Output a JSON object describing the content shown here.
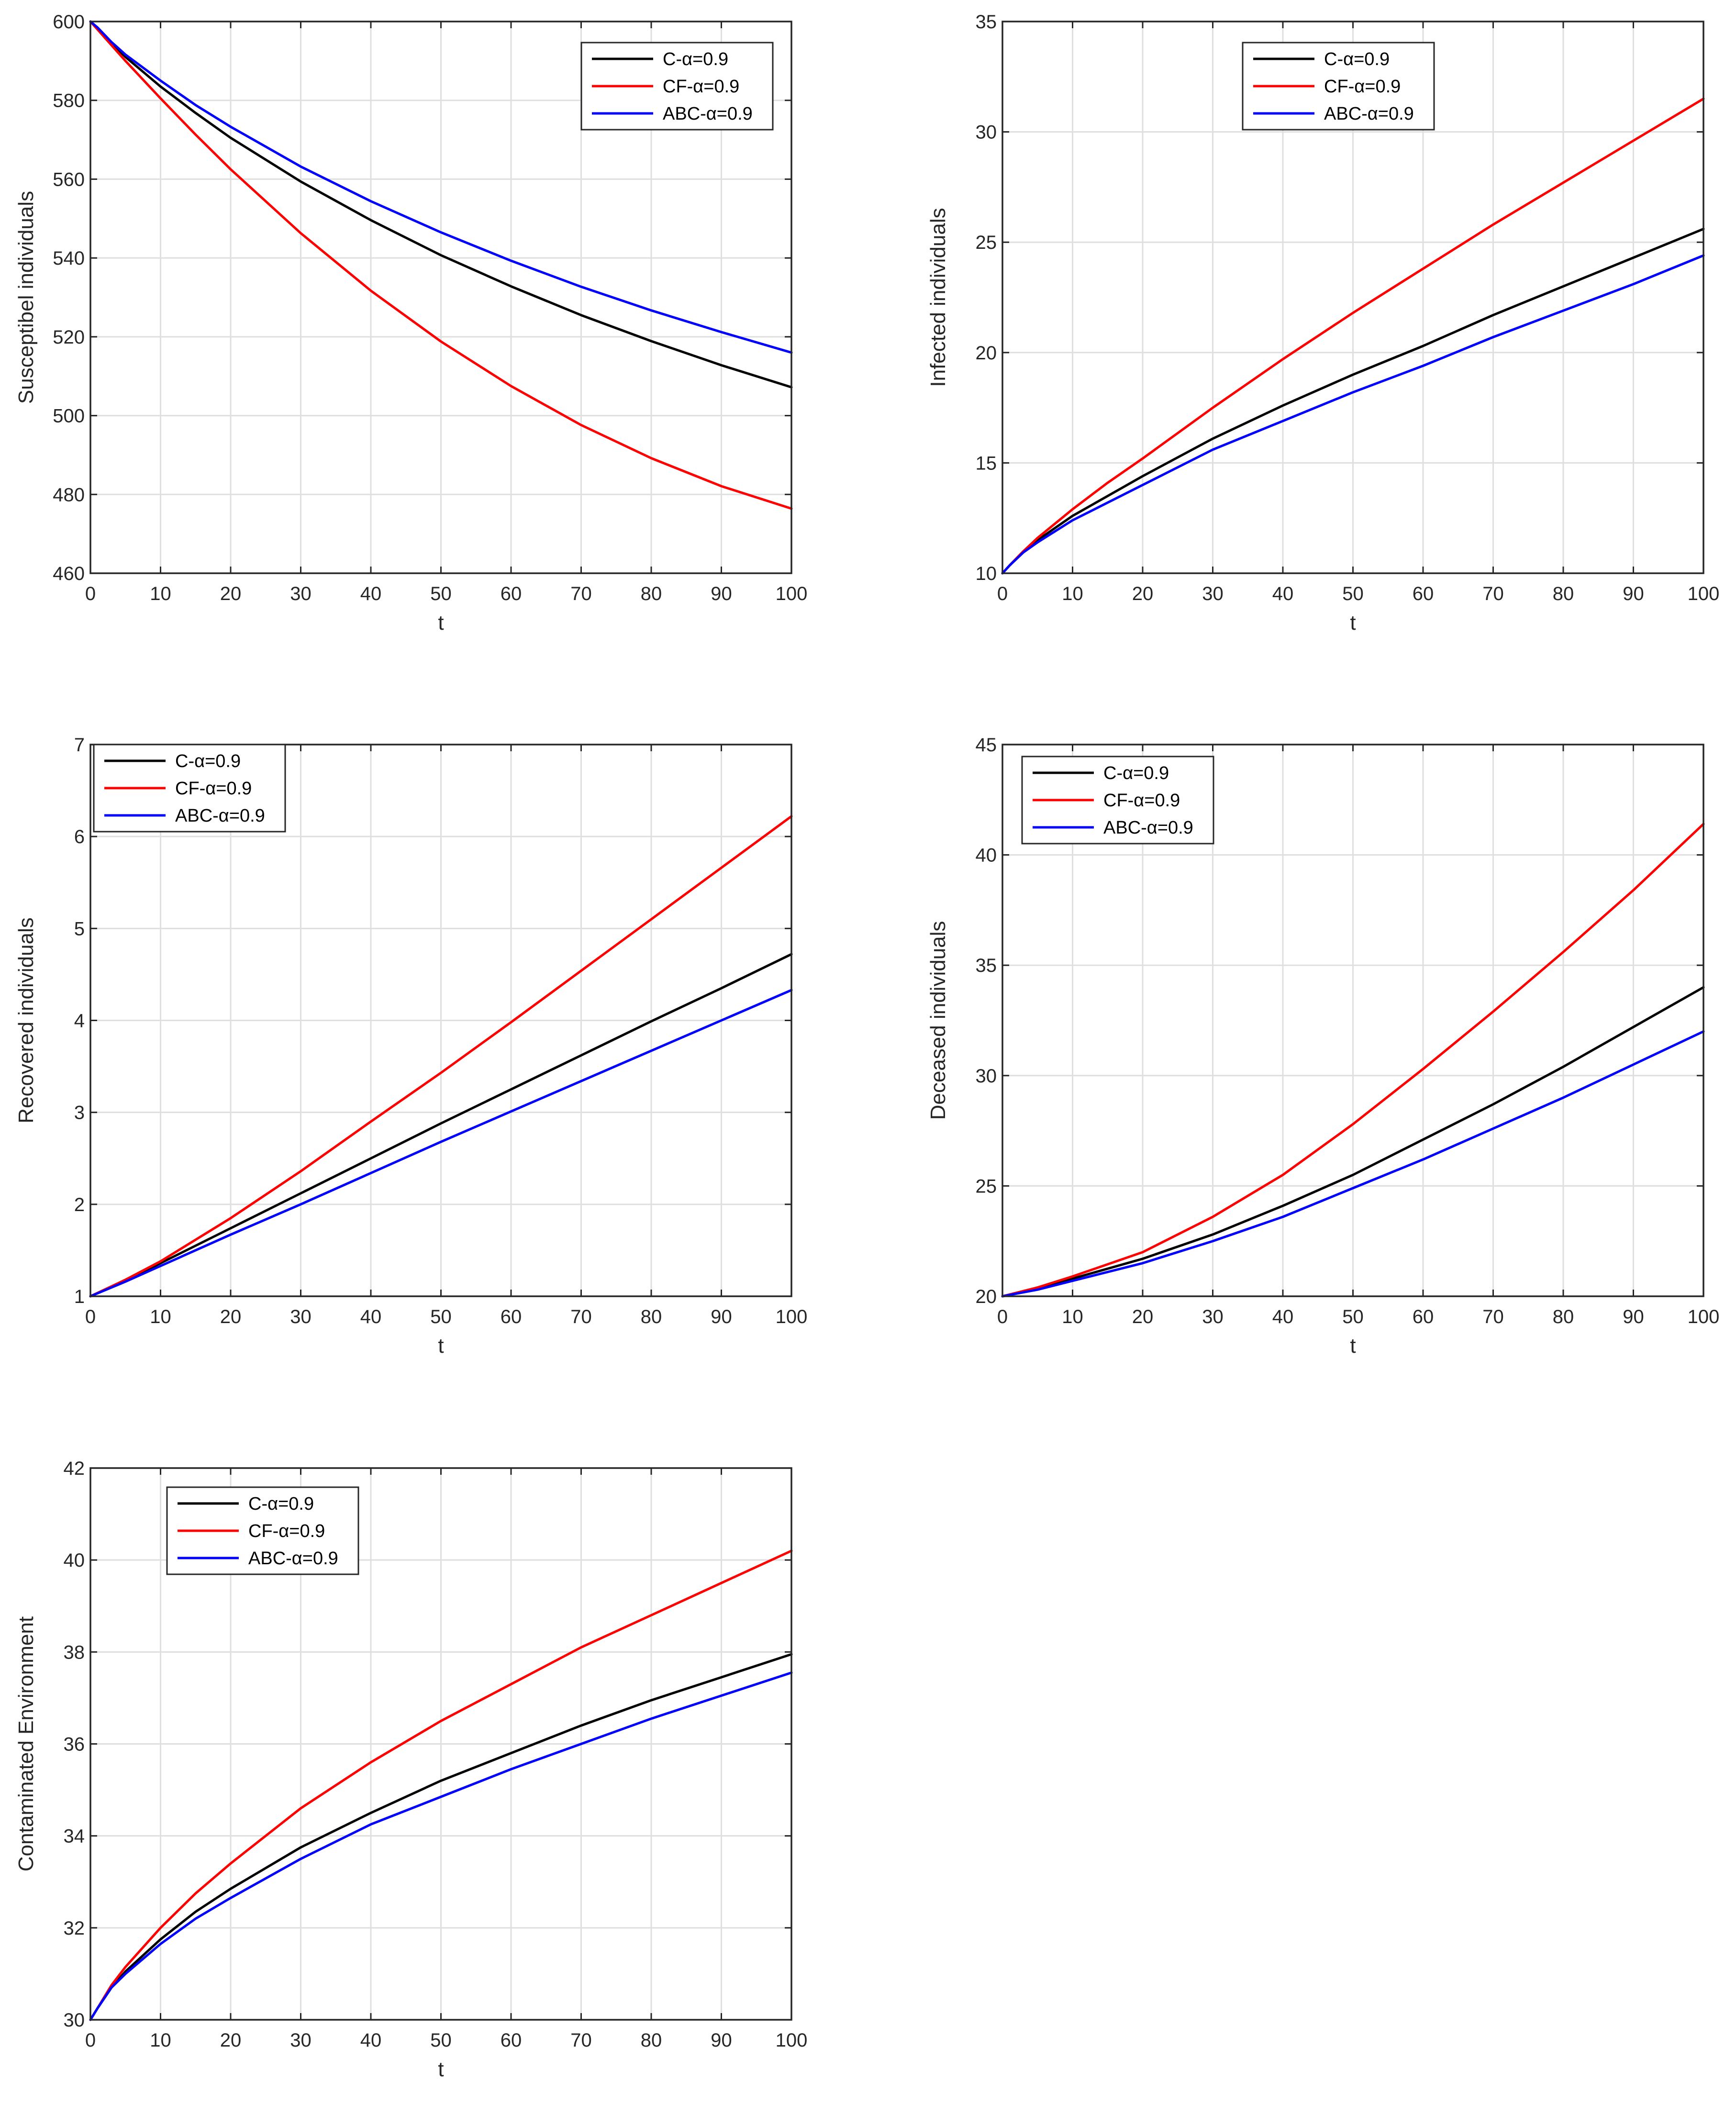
{
  "colors": {
    "C": "#000000",
    "CF": "#ff0000",
    "ABC": "#0000ff"
  },
  "chart_data": [
    {
      "type": "line",
      "xlabel": "t",
      "ylabel": "Susceptibel individuals",
      "xlim": [
        0,
        100
      ],
      "ylim": [
        460,
        600
      ],
      "xticks": [
        0,
        10,
        20,
        30,
        40,
        50,
        60,
        70,
        80,
        90,
        100
      ],
      "yticks": [
        460,
        480,
        500,
        520,
        540,
        560,
        580,
        600
      ],
      "legend_position": "top-right",
      "grid": true,
      "x": [
        0,
        1,
        3,
        5,
        10,
        15,
        20,
        30,
        40,
        50,
        60,
        70,
        80,
        90,
        100
      ],
      "series": [
        {
          "name": "C-α=0.9",
          "key": "C",
          "values": [
            600,
            598.3,
            594.5,
            591,
            583.5,
            576.8,
            570.5,
            559.4,
            549.6,
            540.7,
            532.8,
            525.5,
            518.9,
            512.8,
            507.2
          ]
        },
        {
          "name": "CF-α=0.9",
          "key": "CF",
          "values": [
            600,
            598,
            594,
            590,
            580.5,
            571.3,
            562.5,
            546.3,
            531.7,
            518.8,
            507.5,
            497.6,
            489.2,
            482.1,
            476.4
          ]
        },
        {
          "name": "ABC-α=0.9",
          "key": "ABC",
          "values": [
            600,
            598.5,
            594.8,
            591.6,
            585,
            578.8,
            573.3,
            563.2,
            554.4,
            546.5,
            539.3,
            532.7,
            526.7,
            521.2,
            516
          ]
        }
      ]
    },
    {
      "type": "line",
      "xlabel": "t",
      "ylabel": "Infected individuals",
      "xlim": [
        0,
        100
      ],
      "ylim": [
        10,
        35
      ],
      "xticks": [
        0,
        10,
        20,
        30,
        40,
        50,
        60,
        70,
        80,
        90,
        100
      ],
      "yticks": [
        10,
        15,
        20,
        25,
        30,
        35
      ],
      "legend_position": "top-left",
      "grid": true,
      "x": [
        0,
        1,
        3,
        5,
        10,
        15,
        20,
        30,
        40,
        50,
        60,
        70,
        80,
        90,
        100
      ],
      "series": [
        {
          "name": "C-α=0.9",
          "key": "C",
          "values": [
            10,
            10.35,
            11,
            11.5,
            12.6,
            13.5,
            14.4,
            16.1,
            17.6,
            19,
            20.3,
            21.7,
            23,
            24.3,
            25.6
          ]
        },
        {
          "name": "CF-α=0.9",
          "key": "CF",
          "values": [
            10,
            10.35,
            11,
            11.6,
            12.9,
            14.1,
            15.2,
            17.5,
            19.7,
            21.8,
            23.8,
            25.8,
            27.7,
            29.6,
            31.5
          ]
        },
        {
          "name": "ABC-α=0.9",
          "key": "ABC",
          "values": [
            10,
            10.35,
            10.95,
            11.4,
            12.4,
            13.2,
            14,
            15.6,
            16.9,
            18.2,
            19.4,
            20.7,
            21.9,
            23.1,
            24.4
          ]
        }
      ]
    },
    {
      "type": "line",
      "xlabel": "t",
      "ylabel": "Recovered individuals",
      "xlim": [
        0,
        100
      ],
      "ylim": [
        1,
        7
      ],
      "xticks": [
        0,
        10,
        20,
        30,
        40,
        50,
        60,
        70,
        80,
        90,
        100
      ],
      "yticks": [
        1,
        2,
        3,
        4,
        5,
        6,
        7
      ],
      "legend_position": "top-left",
      "grid": true,
      "x": [
        0,
        5,
        10,
        20,
        30,
        40,
        50,
        60,
        70,
        80,
        90,
        100
      ],
      "series": [
        {
          "name": "C-α=0.9",
          "key": "C",
          "values": [
            1,
            1.17,
            1.36,
            1.74,
            2.12,
            2.5,
            2.88,
            3.25,
            3.62,
            3.99,
            4.35,
            4.72
          ]
        },
        {
          "name": "CF-α=0.9",
          "key": "CF",
          "values": [
            1,
            1.18,
            1.38,
            1.85,
            2.36,
            2.9,
            3.43,
            3.98,
            4.54,
            5.1,
            5.66,
            6.22
          ]
        },
        {
          "name": "ABC-α=0.9",
          "key": "ABC",
          "values": [
            1,
            1.16,
            1.33,
            1.67,
            2.0,
            2.34,
            2.68,
            3.01,
            3.34,
            3.67,
            4.0,
            4.33
          ]
        }
      ]
    },
    {
      "type": "line",
      "xlabel": "t",
      "ylabel": "Deceased individuals",
      "xlim": [
        0,
        100
      ],
      "ylim": [
        20,
        45
      ],
      "xticks": [
        0,
        10,
        20,
        30,
        40,
        50,
        60,
        70,
        80,
        90,
        100
      ],
      "yticks": [
        20,
        25,
        30,
        35,
        40,
        45
      ],
      "legend_position": "top-left",
      "grid": true,
      "x": [
        0,
        5,
        10,
        20,
        30,
        40,
        50,
        60,
        70,
        80,
        90,
        100
      ],
      "series": [
        {
          "name": "C-α=0.9",
          "key": "C",
          "values": [
            20,
            20.35,
            20.8,
            21.7,
            22.8,
            24.1,
            25.5,
            27.1,
            28.7,
            30.4,
            32.2,
            34.0
          ]
        },
        {
          "name": "CF-α=0.9",
          "key": "CF",
          "values": [
            20,
            20.4,
            20.9,
            22.0,
            23.6,
            25.5,
            27.8,
            30.3,
            32.9,
            35.6,
            38.4,
            41.4
          ]
        },
        {
          "name": "ABC-α=0.9",
          "key": "ABC",
          "values": [
            20,
            20.3,
            20.7,
            21.5,
            22.5,
            23.6,
            24.9,
            26.2,
            27.6,
            29.0,
            30.5,
            32.0
          ]
        }
      ]
    },
    {
      "type": "line",
      "xlabel": "t",
      "ylabel": "Contaminated Environment",
      "xlim": [
        0,
        100
      ],
      "ylim": [
        30,
        42
      ],
      "xticks": [
        0,
        10,
        20,
        30,
        40,
        50,
        60,
        70,
        80,
        90,
        100
      ],
      "yticks": [
        30,
        32,
        34,
        36,
        38,
        40,
        42
      ],
      "legend_position": "top-left",
      "grid": true,
      "x": [
        0,
        1,
        3,
        5,
        10,
        15,
        20,
        30,
        40,
        50,
        60,
        70,
        80,
        90,
        100
      ],
      "series": [
        {
          "name": "C-α=0.9",
          "key": "C",
          "values": [
            30,
            30.25,
            30.7,
            31.05,
            31.75,
            32.35,
            32.85,
            33.75,
            34.5,
            35.2,
            35.8,
            36.4,
            36.95,
            37.45,
            37.95
          ]
        },
        {
          "name": "CF-α=0.9",
          "key": "CF",
          "values": [
            30,
            30.25,
            30.75,
            31.15,
            32.0,
            32.75,
            33.4,
            34.6,
            35.6,
            36.5,
            37.3,
            38.1,
            38.8,
            39.5,
            40.2
          ]
        },
        {
          "name": "ABC-α=0.9",
          "key": "ABC",
          "values": [
            30,
            30.25,
            30.7,
            31.0,
            31.65,
            32.2,
            32.65,
            33.5,
            34.25,
            34.85,
            35.45,
            36.0,
            36.55,
            37.05,
            37.55
          ]
        }
      ]
    }
  ]
}
